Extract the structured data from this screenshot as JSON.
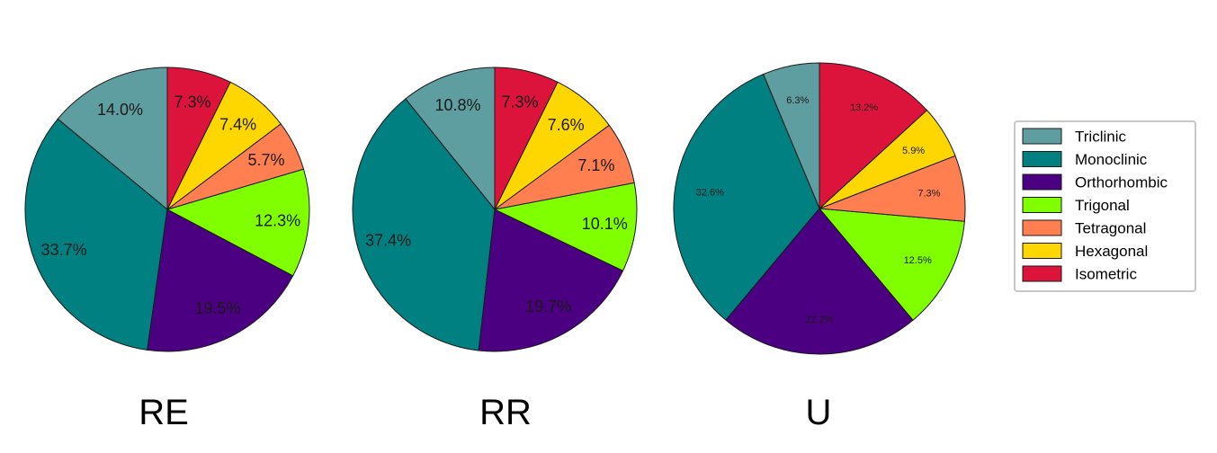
{
  "chart_data": [
    {
      "type": "pie",
      "title": "RE",
      "categories": [
        "Triclinic",
        "Monoclinic",
        "Orthorhombic",
        "Trigonal",
        "Tetragonal",
        "Hexagonal",
        "Isometric"
      ],
      "values": [
        14.0,
        33.7,
        19.5,
        12.3,
        5.7,
        7.4,
        7.3
      ],
      "labels": [
        "14.0%",
        "33.7%",
        "19.5%",
        "12.3%",
        "5.7%",
        "7.4%",
        "7.3%"
      ]
    },
    {
      "type": "pie",
      "title": "RR",
      "categories": [
        "Triclinic",
        "Monoclinic",
        "Orthorhombic",
        "Trigonal",
        "Tetragonal",
        "Hexagonal",
        "Isometric"
      ],
      "values": [
        10.8,
        37.4,
        19.7,
        10.1,
        7.1,
        7.6,
        7.3
      ],
      "labels": [
        "10.8%",
        "37.4%",
        "19.7%",
        "10.1%",
        "7.1%",
        "7.6%",
        "7.3%"
      ]
    },
    {
      "type": "pie",
      "title": "U",
      "categories": [
        "Triclinic",
        "Monoclinic",
        "Orthorhombic",
        "Trigonal",
        "Tetragonal",
        "Hexagonal",
        "Isometric"
      ],
      "values": [
        6.3,
        32.6,
        22.2,
        12.5,
        7.3,
        5.9,
        13.2
      ],
      "labels": [
        "6.3%",
        "32.6%",
        "22.2%",
        "12.5%",
        "7.3%",
        "5.9%",
        "13.2%"
      ]
    }
  ],
  "legend": {
    "placement": "right",
    "items": [
      {
        "label": "Triclinic",
        "color": "#5f9ea0"
      },
      {
        "label": "Monoclinic",
        "color": "#008080"
      },
      {
        "label": "Orthorhombic",
        "color": "#4b0082"
      },
      {
        "label": "Trigonal",
        "color": "#7fff00"
      },
      {
        "label": "Tetragonal",
        "color": "#ff7f50"
      },
      {
        "label": "Hexagonal",
        "color": "#ffd700"
      },
      {
        "label": "Isometric",
        "color": "#dc143c"
      }
    ]
  }
}
